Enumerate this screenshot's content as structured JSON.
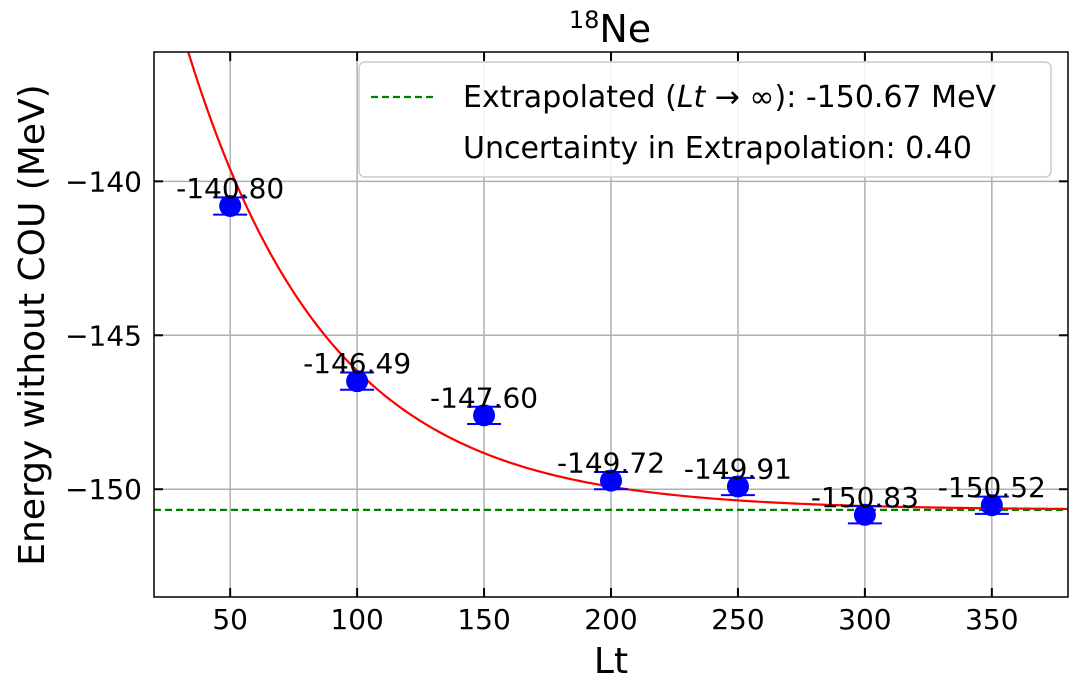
{
  "chart_data": {
    "type": "scatter",
    "title_sup": "18",
    "title_main": "Ne",
    "xlabel": "Lt",
    "ylabel": "Energy without COU (MeV)",
    "xlim": [
      20,
      380
    ],
    "ylim": [
      -153.5,
      -135.8
    ],
    "x_ticks": [
      50,
      100,
      150,
      200,
      250,
      300,
      350
    ],
    "x_tick_labels": [
      "50",
      "100",
      "150",
      "200",
      "250",
      "300",
      "350"
    ],
    "y_ticks": [
      -140,
      -145,
      -150
    ],
    "y_tick_labels": [
      "−140",
      "−145",
      "−150"
    ],
    "grid": true,
    "points": {
      "x": [
        50,
        100,
        150,
        200,
        250,
        300,
        350
      ],
      "y": [
        -140.8,
        -146.49,
        -147.6,
        -149.72,
        -149.91,
        -150.83,
        -150.52
      ],
      "yerr": [
        0.28,
        0.28,
        0.28,
        0.28,
        0.28,
        0.28,
        0.28
      ],
      "labels": [
        "-140.80",
        "-146.49",
        "-147.60",
        "-149.72",
        "-149.91",
        "-150.83",
        "-150.52"
      ],
      "color": "#0000ff"
    },
    "fit_curve": {
      "form": "E_inf + A*exp(-Lt/tau)",
      "E_inf": -150.67,
      "A": 27.1,
      "tau": 55.8,
      "color": "#ff0000"
    },
    "extrapolated_line": {
      "y": -150.67,
      "color": "#008000"
    },
    "legend": {
      "placement": "top-right",
      "entry1_prefix": "Extrapolated (",
      "entry1_math": "Lt",
      "entry1_arrow": " → ∞",
      "entry1_suffix": "): -150.67 MeV",
      "entry2": "Uncertainty in Extrapolation: 0.40"
    }
  }
}
